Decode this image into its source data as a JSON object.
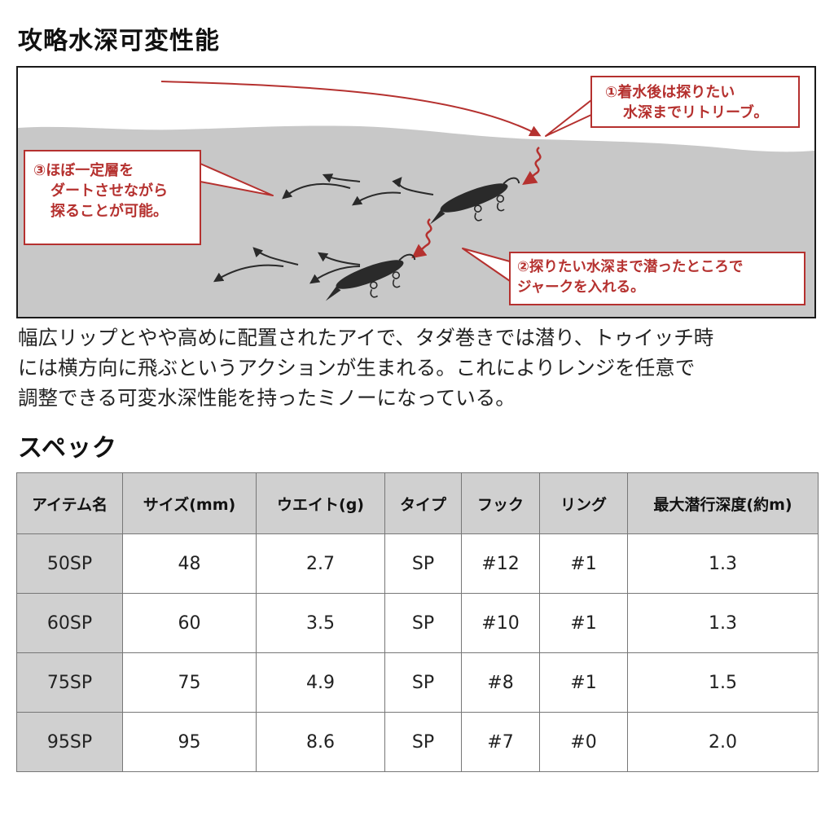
{
  "section1": {
    "title": "攻略水深可変性能",
    "callouts": {
      "c1": [
        "①着水後は探りたい",
        "水深までリトリーブ。"
      ],
      "c2": [
        "②探りたい水深まで潜ったところで",
        "ジャークを入れる。"
      ],
      "c3": [
        "③ほぼ一定層を",
        "ダートさせながら",
        "探ることが可能。"
      ]
    },
    "description": [
      "幅広リップとやや高めに配置されたアイで、タダ巻きでは潜り、トゥイッチ時",
      "には横方向に飛ぶというアクションが生まれる。これによりレンジを任意で",
      "調整できる可変水深性能を持ったミノーになっている。"
    ]
  },
  "section2": {
    "title": "スペック",
    "headers": [
      "アイテム名",
      "サイズ(mm)",
      "ウエイト(g)",
      "タイプ",
      "フック",
      "リング",
      "最大潜行深度(約m)"
    ],
    "rows": [
      [
        "50SP",
        "48",
        "2.7",
        "SP",
        "#12",
        "#1",
        "1.3"
      ],
      [
        "60SP",
        "60",
        "3.5",
        "SP",
        "#10",
        "#1",
        "1.3"
      ],
      [
        "75SP",
        "75",
        "4.9",
        "SP",
        "#8",
        "#1",
        "1.5"
      ],
      [
        "95SP",
        "95",
        "8.6",
        "SP",
        "#7",
        "#0",
        "2.0"
      ]
    ]
  },
  "colors": {
    "accent_red": "#b5312f",
    "water_gray": "#c8c8c8",
    "header_gray": "#d0d0d0"
  }
}
